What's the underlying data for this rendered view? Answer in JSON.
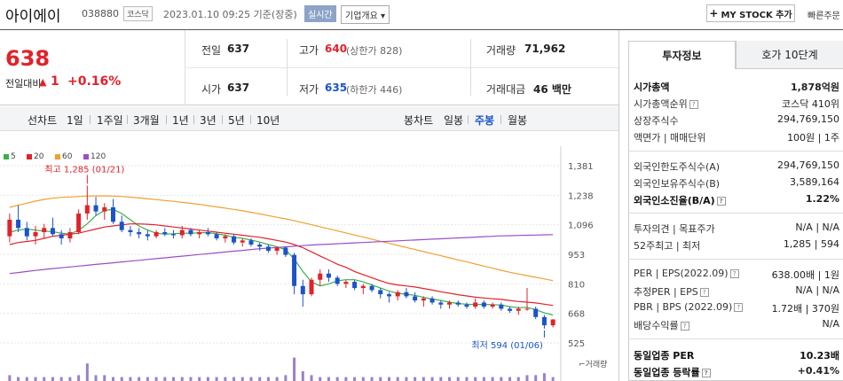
{
  "header": {
    "name": "아이에이",
    "code": "038880",
    "market": "코스닥",
    "time": "2023.01.10 09:25 기준(장중)",
    "realtime": "실시간",
    "overview": "기업개요",
    "mystock": "MY STOCK 추가",
    "quick_order": "빠른주문"
  },
  "price": {
    "current": "638",
    "change_label": "전일대비",
    "change_value": "1",
    "change_pct": "+0.16%",
    "prev_close_label": "전일",
    "prev_close": "637",
    "open_label": "시가",
    "open": "637",
    "high_label": "고가",
    "high": "640",
    "upper_limit": "(상한가 828)",
    "low_label": "저가",
    "low": "635",
    "lower_limit": "(하한가 446)",
    "volume_label": "거래량",
    "volume": "71,962",
    "amount_label": "거래대금",
    "amount": "46 백만"
  },
  "period": {
    "line_chart": "선차트",
    "ranges": [
      "1일",
      "1주일",
      "3개월",
      "1년",
      "3년",
      "5년",
      "10년"
    ],
    "candle_chart": "봉차트",
    "candle_types": [
      "일봉",
      "주봉",
      "월봉"
    ],
    "selected_candle": "주봉"
  },
  "chart_data": {
    "type": "candlestick",
    "legend": [
      {
        "name": "5",
        "color": "#3bb04a"
      },
      {
        "name": "20",
        "color": "#e0222a"
      },
      {
        "name": "60",
        "color": "#f0a030"
      },
      {
        "name": "120",
        "color": "#9a4fc8"
      }
    ],
    "y_ticks": [
      "1,381",
      "1,238",
      "1,096",
      "953",
      "810",
      "668",
      "525"
    ],
    "ylim": [
      525,
      1381
    ],
    "high_annotation": "최고 1,285 (01/21)",
    "low_annotation": "최저 594 (01/06)",
    "volume_label": "거래량",
    "candles": [
      [
        1040,
        1150,
        1010,
        1120
      ],
      [
        1120,
        1190,
        1060,
        1080
      ],
      [
        1080,
        1110,
        1020,
        1040
      ],
      [
        1040,
        1090,
        1000,
        1060
      ],
      [
        1060,
        1100,
        1030,
        1080
      ],
      [
        1080,
        1130,
        1040,
        1050
      ],
      [
        1050,
        1070,
        1000,
        1030
      ],
      [
        1030,
        1080,
        1010,
        1060
      ],
      [
        1060,
        1170,
        1050,
        1150
      ],
      [
        1150,
        1285,
        1120,
        1190
      ],
      [
        1190,
        1230,
        1140,
        1160
      ],
      [
        1160,
        1200,
        1120,
        1180
      ],
      [
        1180,
        1220,
        1100,
        1110
      ],
      [
        1110,
        1140,
        1060,
        1070
      ],
      [
        1070,
        1090,
        1040,
        1060
      ],
      [
        1060,
        1080,
        1030,
        1050
      ],
      [
        1050,
        1070,
        1020,
        1040
      ],
      [
        1040,
        1070,
        1030,
        1060
      ],
      [
        1060,
        1080,
        1040,
        1050
      ],
      [
        1050,
        1070,
        1030,
        1045
      ],
      [
        1045,
        1090,
        1030,
        1070
      ],
      [
        1070,
        1080,
        1040,
        1050
      ],
      [
        1050,
        1070,
        1030,
        1060
      ],
      [
        1060,
        1080,
        1040,
        1050
      ],
      [
        1050,
        1060,
        1020,
        1030
      ],
      [
        1030,
        1050,
        1010,
        1040
      ],
      [
        1040,
        1050,
        1000,
        1010
      ],
      [
        1010,
        1030,
        990,
        1020
      ],
      [
        1020,
        1030,
        990,
        1000
      ],
      [
        1000,
        1010,
        970,
        990
      ],
      [
        990,
        1000,
        960,
        970
      ],
      [
        970,
        990,
        950,
        985
      ],
      [
        985,
        990,
        940,
        950
      ],
      [
        950,
        960,
        760,
        800
      ],
      [
        800,
        830,
        700,
        760
      ],
      [
        760,
        840,
        750,
        830
      ],
      [
        830,
        880,
        800,
        860
      ],
      [
        860,
        880,
        820,
        840
      ],
      [
        840,
        850,
        800,
        810
      ],
      [
        810,
        830,
        790,
        820
      ],
      [
        820,
        830,
        780,
        790
      ],
      [
        790,
        810,
        760,
        800
      ],
      [
        800,
        810,
        770,
        780
      ],
      [
        780,
        790,
        740,
        760
      ],
      [
        760,
        770,
        720,
        750
      ],
      [
        750,
        780,
        730,
        770
      ],
      [
        770,
        790,
        740,
        750
      ],
      [
        750,
        770,
        720,
        730
      ],
      [
        730,
        750,
        700,
        740
      ],
      [
        740,
        750,
        710,
        720
      ],
      [
        720,
        730,
        690,
        710
      ],
      [
        710,
        730,
        690,
        720
      ],
      [
        720,
        730,
        700,
        710
      ],
      [
        710,
        720,
        690,
        700
      ],
      [
        700,
        740,
        690,
        720
      ],
      [
        720,
        730,
        690,
        700
      ],
      [
        700,
        720,
        690,
        710
      ],
      [
        710,
        720,
        680,
        690
      ],
      [
        690,
        700,
        670,
        680
      ],
      [
        680,
        700,
        660,
        690
      ],
      [
        690,
        790,
        680,
        690
      ],
      [
        690,
        700,
        640,
        650
      ],
      [
        650,
        660,
        594,
        610
      ],
      [
        610,
        640,
        600,
        638
      ]
    ],
    "ma5": [
      1060,
      1070,
      1075,
      1070,
      1065,
      1062,
      1055,
      1050,
      1070,
      1100,
      1140,
      1165,
      1170,
      1150,
      1120,
      1090,
      1070,
      1055,
      1050,
      1052,
      1055,
      1055,
      1057,
      1058,
      1052,
      1045,
      1035,
      1030,
      1022,
      1012,
      1000,
      990,
      975,
      930,
      870,
      820,
      800,
      810,
      825,
      830,
      830,
      820,
      805,
      790,
      775,
      765,
      760,
      755,
      745,
      737,
      730,
      722,
      715,
      712,
      710,
      711,
      710,
      708,
      700,
      695,
      697,
      685,
      670,
      660
    ],
    "ma20": [
      1000,
      1010,
      1015,
      1020,
      1030,
      1040,
      1045,
      1050,
      1055,
      1065,
      1075,
      1085,
      1090,
      1095,
      1100,
      1100,
      1098,
      1095,
      1090,
      1085,
      1080,
      1075,
      1070,
      1065,
      1060,
      1055,
      1050,
      1045,
      1040,
      1035,
      1028,
      1020,
      1012,
      1000,
      985,
      965,
      945,
      925,
      905,
      890,
      870,
      855,
      840,
      825,
      812,
      805,
      800,
      795,
      788,
      780,
      772,
      765,
      758,
      752,
      746,
      742,
      738,
      735,
      730,
      725,
      722,
      718,
      712,
      706
    ],
    "ma60": [
      1180,
      1190,
      1200,
      1210,
      1218,
      1224,
      1228,
      1230,
      1232,
      1234,
      1235,
      1235,
      1234,
      1232,
      1229,
      1225,
      1221,
      1217,
      1213,
      1209,
      1204,
      1199,
      1194,
      1188,
      1182,
      1176,
      1170,
      1163,
      1156,
      1148,
      1140,
      1132,
      1124,
      1115,
      1106,
      1096,
      1086,
      1076,
      1066,
      1056,
      1046,
      1036,
      1026,
      1016,
      1006,
      996,
      986,
      976,
      966,
      956,
      946,
      936,
      926,
      916,
      906,
      896,
      886,
      876,
      866,
      858,
      850,
      842,
      834,
      826
    ],
    "ma120": [
      860,
      865,
      870,
      875,
      880,
      884,
      888,
      892,
      896,
      900,
      904,
      908,
      912,
      916,
      920,
      924,
      928,
      932,
      936,
      940,
      944,
      948,
      952,
      956,
      960,
      964,
      968,
      972,
      976,
      980,
      983,
      986,
      989,
      992,
      995,
      998,
      1000,
      1002,
      1004,
      1006,
      1008,
      1010,
      1012,
      1014,
      1016,
      1018,
      1020,
      1022,
      1024,
      1026,
      1028,
      1030,
      1032,
      1034,
      1036,
      1038,
      1040,
      1042,
      1043,
      1044,
      1045,
      1046,
      1047,
      1048
    ],
    "volume": [
      3,
      2,
      2,
      2,
      2,
      2,
      2,
      2,
      3,
      9,
      3,
      3,
      2,
      2,
      2,
      2,
      2,
      2,
      2,
      2,
      2,
      2,
      2,
      2,
      2,
      2,
      2,
      2,
      2,
      2,
      2,
      2,
      3,
      12,
      5,
      3,
      2,
      2,
      2,
      2,
      2,
      2,
      2,
      2,
      2,
      2,
      2,
      2,
      2,
      2,
      2,
      2,
      2,
      2,
      2,
      2,
      2,
      2,
      2,
      2,
      3,
      3,
      4,
      2
    ]
  },
  "invest": {
    "tabs": [
      "투자정보",
      "호가 10단계"
    ],
    "rows": [
      {
        "label": "시가총액",
        "value": "1,878억원"
      },
      {
        "label": "시가총액순위",
        "value": "코스닥 410위"
      },
      {
        "label": "상장주식수",
        "value": "294,769,150"
      },
      {
        "label": "액면가 | 매매단위",
        "value": "100원 | 1주"
      },
      {
        "label": "외국인한도주식수(A)",
        "value": "294,769,150"
      },
      {
        "label": "외국인보유주식수(B)",
        "value": "3,589,164"
      },
      {
        "label": "외국인소진율(B/A)",
        "value": "1.22%"
      },
      {
        "label": "투자의견 | 목표주가",
        "value": "N/A | N/A"
      },
      {
        "label": "52주최고 | 최저",
        "value": "1,285 | 594"
      },
      {
        "label": "PER | EPS(2022.09)",
        "value": "638.00배 | 1원"
      },
      {
        "label": "추정PER | EPS",
        "value": "N/A | N/A"
      },
      {
        "label": "PBR | BPS (2022.09)",
        "value": "1.72배 | 370원"
      },
      {
        "label": "배당수익률",
        "value": "N/A"
      },
      {
        "label": "동일업종 PER",
        "value": "10.23배"
      },
      {
        "label": "동일업종 등락률",
        "value": "+0.41%"
      }
    ]
  }
}
